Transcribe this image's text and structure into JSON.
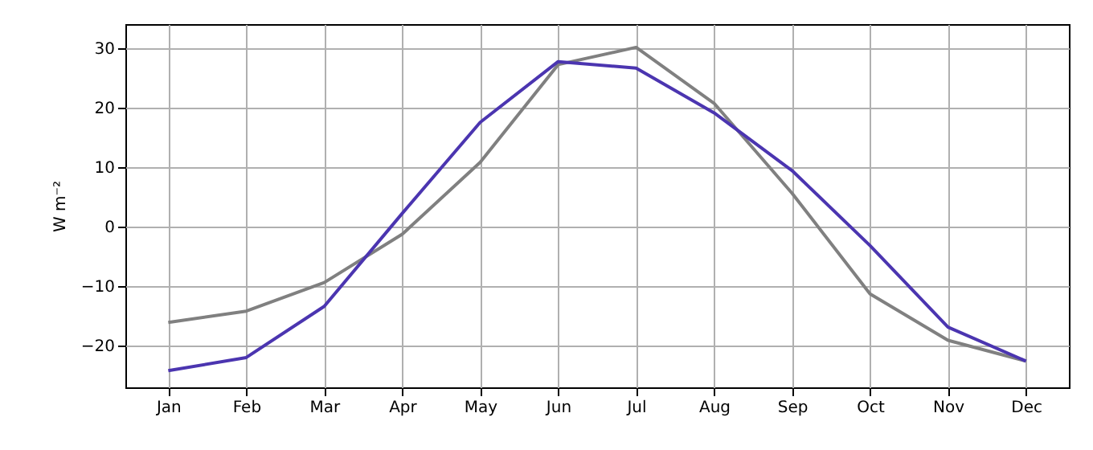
{
  "chart_data": {
    "type": "line",
    "ylabel": "W m⁻²",
    "categories": [
      "Jan",
      "Feb",
      "Mar",
      "Apr",
      "May",
      "Jun",
      "Jul",
      "Aug",
      "Sep",
      "Oct",
      "Nov",
      "Dec"
    ],
    "series": [
      {
        "color": "#808080",
        "values": [
          -16.1,
          -14.2,
          -9.4,
          -1.3,
          10.8,
          27.2,
          30.1,
          20.7,
          5.6,
          -11.3,
          -19.1,
          -22.6
        ]
      },
      {
        "color": "#4b35b0",
        "values": [
          -24.2,
          -22.0,
          -13.4,
          2.2,
          17.5,
          27.7,
          26.6,
          19.1,
          9.4,
          -3.2,
          -16.9,
          -22.6
        ]
      }
    ],
    "ylim": [
      -27,
      34
    ],
    "yticks": [
      -20,
      -10,
      0,
      10,
      20,
      30
    ],
    "grid": true,
    "marker": "none",
    "line_style": "solid"
  }
}
